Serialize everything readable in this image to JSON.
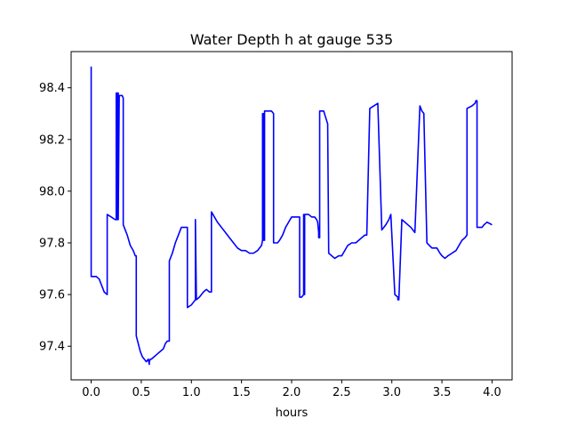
{
  "chart_data": {
    "type": "line",
    "title": "Water Depth h at gauge 535",
    "xlabel": "hours",
    "ylabel": "",
    "xlim": [
      -0.2,
      4.2
    ],
    "ylim": [
      97.27,
      98.54
    ],
    "xticks": [
      0.0,
      0.5,
      1.0,
      1.5,
      2.0,
      2.5,
      3.0,
      3.5,
      4.0
    ],
    "xtick_labels": [
      "0.0",
      "0.5",
      "1.0",
      "1.5",
      "2.0",
      "2.5",
      "3.0",
      "3.5",
      "4.0"
    ],
    "yticks": [
      97.4,
      97.6,
      97.8,
      98.0,
      98.2,
      98.4
    ],
    "ytick_labels": [
      "97.4",
      "97.6",
      "97.8",
      "98.0",
      "98.2",
      "98.4"
    ],
    "grid": false,
    "legend": "none",
    "series": [
      {
        "color": "#0000ff",
        "x": [
          0.0,
          0.0,
          0.0,
          0.0,
          0.05,
          0.08,
          0.1,
          0.13,
          0.16,
          0.16,
          0.2,
          0.24,
          0.25,
          0.25,
          0.26,
          0.26,
          0.27,
          0.27,
          0.28,
          0.31,
          0.32,
          0.32,
          0.33,
          0.36,
          0.39,
          0.42,
          0.43,
          0.44,
          0.45,
          0.45,
          0.47,
          0.49,
          0.51,
          0.53,
          0.55,
          0.57,
          0.58,
          0.58,
          0.59,
          0.6,
          0.63,
          0.66,
          0.69,
          0.72,
          0.74,
          0.76,
          0.78,
          0.78,
          0.81,
          0.84,
          0.87,
          0.9,
          0.93,
          0.96,
          0.96,
          1.0,
          1.04,
          1.04,
          1.05,
          1.08,
          1.1,
          1.12,
          1.15,
          1.18,
          1.2,
          1.2,
          1.23,
          1.26,
          1.3,
          1.34,
          1.38,
          1.42,
          1.46,
          1.5,
          1.54,
          1.58,
          1.62,
          1.66,
          1.7,
          1.71,
          1.71,
          1.72,
          1.72,
          1.73,
          1.73,
          1.74,
          1.78,
          1.8,
          1.82,
          1.82,
          1.86,
          1.88,
          1.91,
          1.94,
          1.97,
          2.0,
          2.04,
          2.07,
          2.08,
          2.08,
          2.1,
          2.12,
          2.12,
          2.13,
          2.13,
          2.17,
          2.2,
          2.23,
          2.25,
          2.26,
          2.27,
          2.27,
          2.28,
          2.28,
          2.32,
          2.36,
          2.36,
          2.37,
          2.4,
          2.43,
          2.47,
          2.5,
          2.53,
          2.56,
          2.6,
          2.64,
          2.67,
          2.7,
          2.73,
          2.75,
          2.75,
          2.78,
          2.82,
          2.86,
          2.86,
          2.9,
          2.94,
          2.97,
          2.99,
          2.99,
          3.03,
          3.06,
          3.06,
          3.07,
          3.1,
          3.13,
          3.16,
          3.19,
          3.21,
          3.23,
          3.23,
          3.28,
          3.3,
          3.32,
          3.32,
          3.35,
          3.4,
          3.45,
          3.48,
          3.5,
          3.53,
          3.56,
          3.6,
          3.64,
          3.67,
          3.7,
          3.73,
          3.75,
          3.75,
          3.8,
          3.83,
          3.84,
          3.85,
          3.85,
          3.88,
          3.9,
          3.92,
          3.95,
          4.0
        ],
        "y": [
          97.99,
          98.48,
          97.99,
          97.67,
          97.67,
          97.66,
          97.64,
          97.61,
          97.6,
          97.91,
          97.9,
          97.89,
          97.89,
          98.38,
          97.89,
          98.38,
          98.38,
          97.89,
          98.37,
          98.37,
          98.36,
          97.87,
          97.86,
          97.83,
          97.79,
          97.77,
          97.76,
          97.75,
          97.75,
          97.44,
          97.41,
          97.38,
          97.36,
          97.35,
          97.34,
          97.35,
          97.33,
          97.34,
          97.35,
          97.35,
          97.36,
          97.37,
          97.38,
          97.39,
          97.41,
          97.42,
          97.42,
          97.73,
          97.76,
          97.8,
          97.83,
          97.86,
          97.86,
          97.86,
          97.55,
          97.56,
          97.58,
          97.89,
          97.58,
          97.59,
          97.6,
          97.61,
          97.62,
          97.61,
          97.61,
          97.92,
          97.9,
          97.88,
          97.86,
          97.84,
          97.82,
          97.8,
          97.78,
          97.77,
          97.77,
          97.76,
          97.76,
          97.77,
          97.79,
          97.81,
          98.3,
          97.81,
          98.3,
          97.81,
          98.31,
          98.31,
          98.31,
          98.31,
          98.3,
          97.8,
          97.8,
          97.81,
          97.83,
          97.86,
          97.88,
          97.9,
          97.9,
          97.9,
          97.9,
          97.59,
          97.59,
          97.6,
          97.91,
          97.6,
          97.91,
          97.91,
          97.9,
          97.9,
          97.89,
          97.88,
          97.84,
          97.82,
          97.82,
          98.31,
          98.31,
          98.26,
          98.25,
          97.76,
          97.75,
          97.74,
          97.75,
          97.75,
          97.77,
          97.79,
          97.8,
          97.8,
          97.81,
          97.82,
          97.83,
          97.83,
          97.83,
          98.32,
          98.33,
          98.34,
          98.34,
          97.85,
          97.87,
          97.89,
          97.91,
          97.91,
          97.6,
          97.59,
          97.58,
          97.58,
          97.89,
          97.88,
          97.87,
          97.86,
          97.85,
          97.84,
          97.84,
          98.33,
          98.31,
          98.3,
          98.29,
          97.8,
          97.78,
          97.78,
          97.76,
          97.75,
          97.74,
          97.75,
          97.76,
          97.77,
          97.79,
          97.81,
          97.82,
          97.83,
          98.32,
          98.33,
          98.34,
          98.35,
          98.35,
          97.86,
          97.86,
          97.86,
          97.87,
          97.88,
          97.87
        ]
      }
    ]
  }
}
